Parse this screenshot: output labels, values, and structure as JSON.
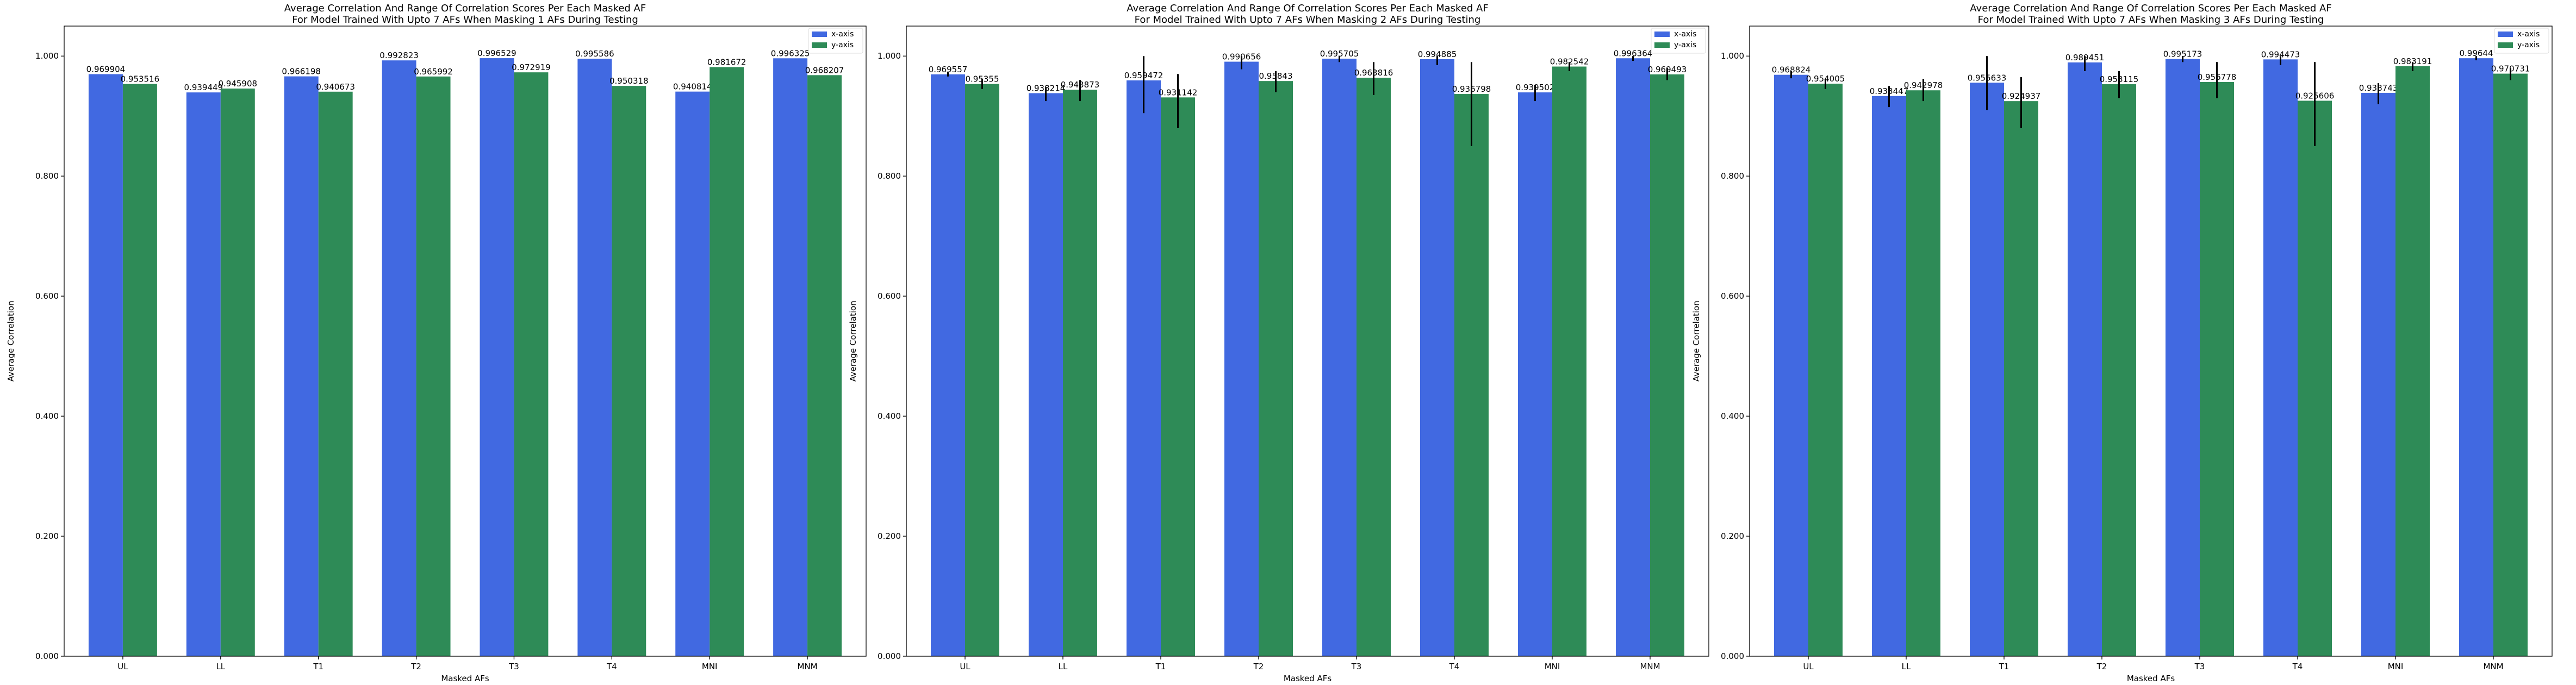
{
  "figure": {
    "axes_count": 3
  },
  "colors": {
    "x_axis": "#4169e1",
    "y_axis": "#2e8b57",
    "error": "#000000"
  },
  "chart_data": [
    {
      "type": "bar",
      "title": "Average Correlation And Range Of Correlation Scores Per Each Masked AF",
      "subtitle": "For Model Trained With Upto 7 AFs When Masking 1 AFs During Testing",
      "xlabel": "Masked AFs",
      "ylabel": "Average Correlation",
      "ylim": [
        0,
        1.05
      ],
      "yticks": [
        0.0,
        0.2,
        0.4,
        0.6,
        0.8,
        1.0
      ],
      "ytick_labels": [
        "0.000",
        "0.200",
        "0.400",
        "0.600",
        "0.800",
        "1.000"
      ],
      "legend_position": "top-right",
      "grid": false,
      "categories": [
        "UL",
        "LL",
        "T1",
        "T2",
        "T3",
        "T4",
        "MNI",
        "MNM"
      ],
      "series": [
        {
          "name": "x-axis",
          "color": "#4169e1",
          "values": [
            0.969904,
            0.939449,
            0.966198,
            0.992823,
            0.996529,
            0.995586,
            0.940814,
            0.996325
          ],
          "labels": [
            "0.969904",
            "0.939449",
            "0.966198",
            "0.992823",
            "0.996529",
            "0.995586",
            "0.940814",
            "0.996325"
          ],
          "error_low": [
            0.969904,
            0.939449,
            0.966198,
            0.992823,
            0.996529,
            0.995586,
            0.940814,
            0.996325
          ],
          "error_high": [
            0.969904,
            0.939449,
            0.966198,
            0.992823,
            0.996529,
            0.995586,
            0.940814,
            0.996325
          ]
        },
        {
          "name": "y-axis",
          "color": "#2e8b57",
          "values": [
            0.953516,
            0.945908,
            0.940673,
            0.965992,
            0.972919,
            0.950318,
            0.981672,
            0.968207
          ],
          "labels": [
            "0.953516",
            "0.945908",
            "0.940673",
            "0.965992",
            "0.972919",
            "0.950318",
            "0.981672",
            "0.968207"
          ],
          "error_low": [
            0.953516,
            0.945908,
            0.940673,
            0.965992,
            0.972919,
            0.950318,
            0.981672,
            0.968207
          ],
          "error_high": [
            0.953516,
            0.945908,
            0.940673,
            0.965992,
            0.972919,
            0.950318,
            0.981672,
            0.968207
          ]
        }
      ]
    },
    {
      "type": "bar",
      "title": "Average Correlation And Range Of Correlation Scores Per Each Masked AF",
      "subtitle": "For Model Trained With Upto 7 AFs When Masking 2 AFs During Testing",
      "xlabel": "Masked AFs",
      "ylabel": "Average Correlation",
      "ylim": [
        0,
        1.05
      ],
      "yticks": [
        0.0,
        0.2,
        0.4,
        0.6,
        0.8,
        1.0
      ],
      "ytick_labels": [
        "0.000",
        "0.200",
        "0.400",
        "0.600",
        "0.800",
        "1.000"
      ],
      "legend_position": "top-right",
      "grid": false,
      "categories": [
        "UL",
        "LL",
        "T1",
        "T2",
        "T3",
        "T4",
        "MNI",
        "MNM"
      ],
      "series": [
        {
          "name": "x-axis",
          "color": "#4169e1",
          "values": [
            0.969557,
            0.938214,
            0.959472,
            0.990656,
            0.995705,
            0.994885,
            0.939502,
            0.996364
          ],
          "labels": [
            "0.969557",
            "0.938214",
            "0.959472",
            "0.990656",
            "0.995705",
            "0.994885",
            "0.939502",
            "0.996364"
          ],
          "error_low": [
            0.966,
            0.925,
            0.905,
            0.978,
            0.99,
            0.985,
            0.925,
            0.992
          ],
          "error_high": [
            0.973,
            0.948,
            1.0,
            1.0,
            1.0,
            1.0,
            0.952,
            1.0
          ]
        },
        {
          "name": "y-axis",
          "color": "#2e8b57",
          "values": [
            0.95355,
            0.943873,
            0.931142,
            0.95843,
            0.963816,
            0.936798,
            0.982542,
            0.969493
          ],
          "labels": [
            "0.95355",
            "0.943873",
            "0.931142",
            "0.95843",
            "0.963816",
            "0.936798",
            "0.982542",
            "0.969493"
          ],
          "error_low": [
            0.945,
            0.925,
            0.88,
            0.94,
            0.935,
            0.85,
            0.975,
            0.96
          ],
          "error_high": [
            0.962,
            0.96,
            0.97,
            0.975,
            0.99,
            0.99,
            0.99,
            0.98
          ]
        }
      ]
    },
    {
      "type": "bar",
      "title": "Average Correlation And Range Of Correlation Scores Per Each Masked AF",
      "subtitle": "For Model Trained With Upto 7 AFs When Masking 3 AFs During Testing",
      "xlabel": "Masked AFs",
      "ylabel": "Average Correlation",
      "ylim": [
        0,
        1.05
      ],
      "yticks": [
        0.0,
        0.2,
        0.4,
        0.6,
        0.8,
        1.0
      ],
      "ytick_labels": [
        "0.000",
        "0.200",
        "0.400",
        "0.600",
        "0.800",
        "1.000"
      ],
      "legend_position": "top-right",
      "grid": false,
      "categories": [
        "UL",
        "LL",
        "T1",
        "T2",
        "T3",
        "T4",
        "MNI",
        "MNM"
      ],
      "series": [
        {
          "name": "x-axis",
          "color": "#4169e1",
          "values": [
            0.968824,
            0.933447,
            0.955633,
            0.989451,
            0.995173,
            0.994473,
            0.938743,
            0.99644
          ],
          "labels": [
            "0.968824",
            "0.933447",
            "0.955633",
            "0.989451",
            "0.995173",
            "0.994473",
            "0.938743",
            "0.99644"
          ],
          "error_low": [
            0.963,
            0.915,
            0.91,
            0.975,
            0.99,
            0.985,
            0.92,
            0.993
          ],
          "error_high": [
            0.975,
            0.95,
            1.0,
            1.0,
            1.0,
            1.0,
            0.955,
            1.0
          ]
        },
        {
          "name": "y-axis",
          "color": "#2e8b57",
          "values": [
            0.954005,
            0.942978,
            0.924937,
            0.953115,
            0.956778,
            0.925606,
            0.983191,
            0.970731
          ],
          "labels": [
            "0.954005",
            "0.942978",
            "0.924937",
            "0.953115",
            "0.956778",
            "0.925606",
            "0.983191",
            "0.970731"
          ],
          "error_low": [
            0.945,
            0.925,
            0.88,
            0.93,
            0.93,
            0.85,
            0.975,
            0.96
          ],
          "error_high": [
            0.962,
            0.962,
            0.965,
            0.975,
            0.99,
            0.99,
            0.99,
            0.98
          ]
        }
      ]
    }
  ]
}
